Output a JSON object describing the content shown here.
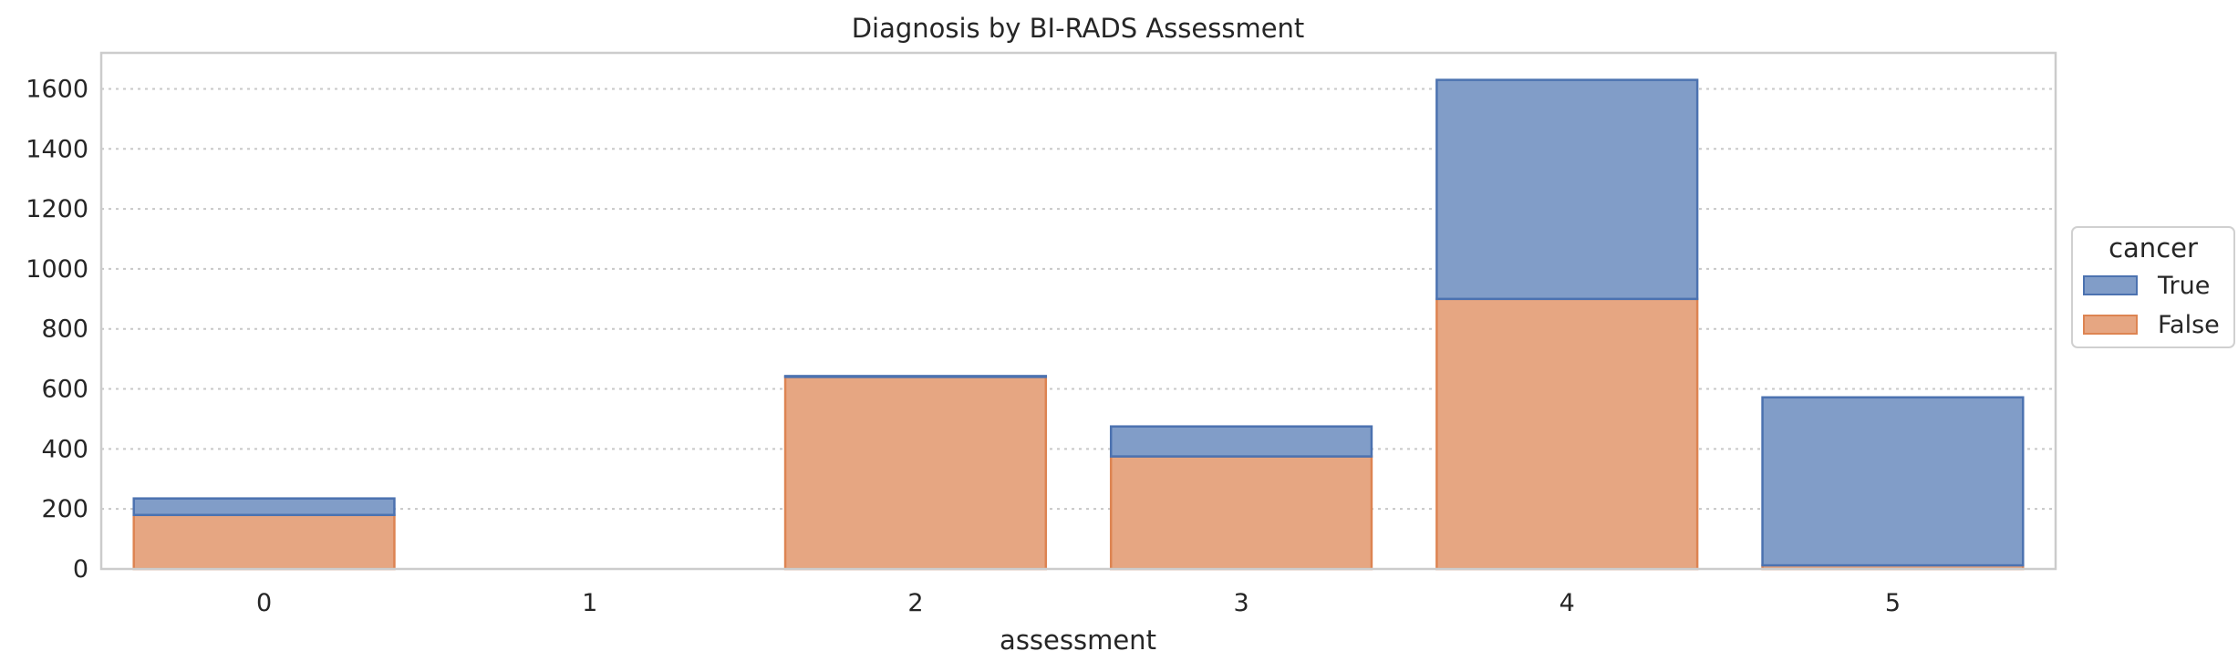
{
  "chart_data": {
    "type": "bar",
    "stacked": true,
    "title": "Diagnosis by BI-RADS Assessment",
    "xlabel": "assessment",
    "ylabel": "",
    "categories": [
      "0",
      "1",
      "2",
      "3",
      "4",
      "5"
    ],
    "ylim": [
      0,
      1720
    ],
    "yticks": [
      0,
      200,
      400,
      600,
      800,
      1000,
      1200,
      1400,
      1600
    ],
    "grid": "horizontal dotted",
    "legend": {
      "title": "cancer",
      "placement": "outside-right"
    },
    "series": [
      {
        "name": "False",
        "color": "#e6a682",
        "edge": "#dd8452",
        "values": [
          180,
          0,
          640,
          375,
          900,
          12
        ]
      },
      {
        "name": "True",
        "color": "#819dc8",
        "edge": "#4c72b0",
        "values": [
          55,
          0,
          3,
          100,
          730,
          560
        ]
      }
    ],
    "legend_order": [
      "True",
      "False"
    ]
  }
}
